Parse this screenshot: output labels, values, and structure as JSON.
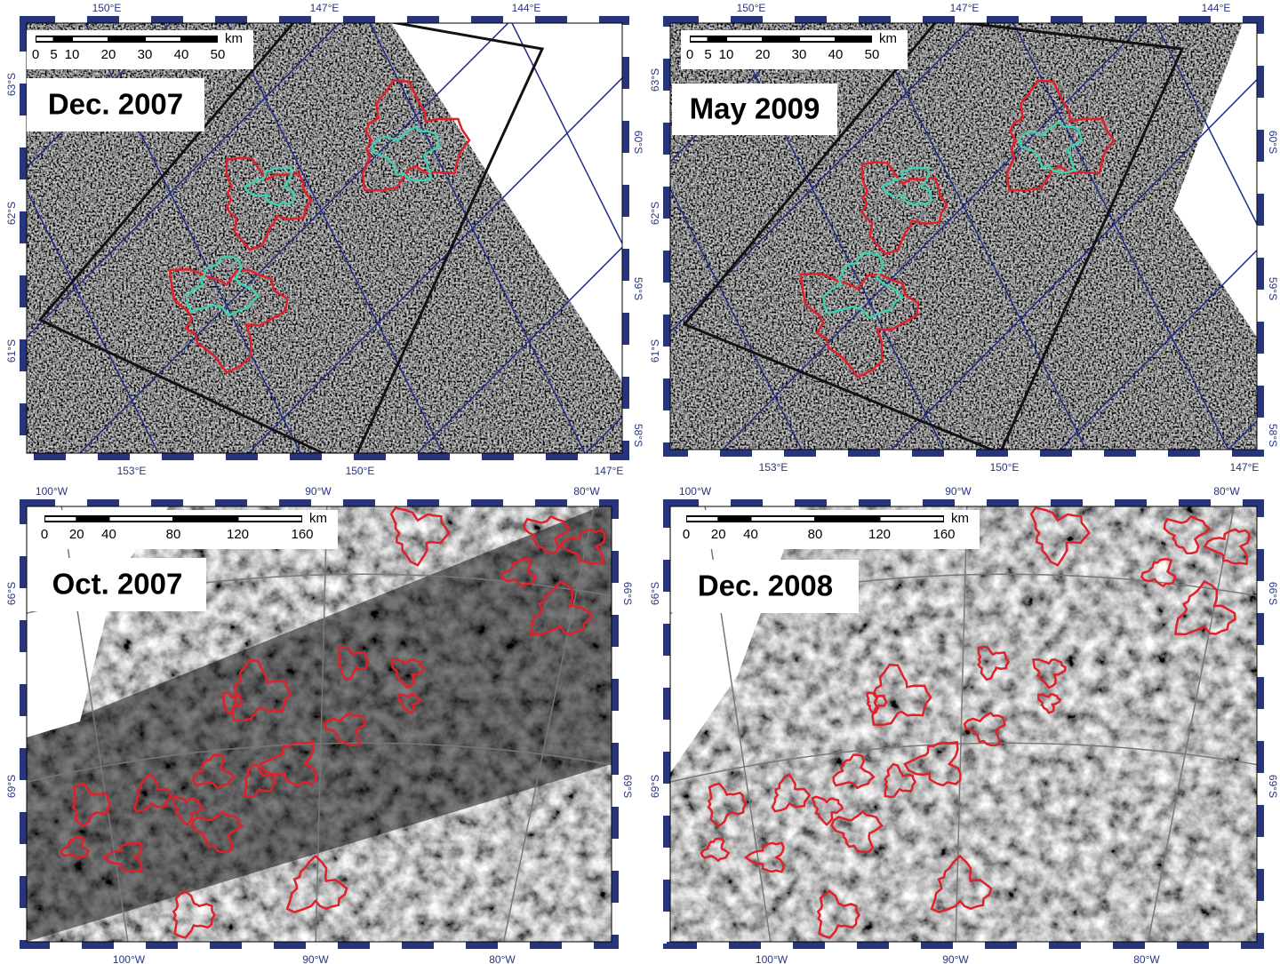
{
  "panels": [
    {
      "title": "Dec. 2007",
      "top_labels": [
        "150°E",
        "147°E",
        "144°E"
      ],
      "bottom_labels": [
        "153°E",
        "150°E",
        "147°E"
      ],
      "left_labels": [
        "63°S",
        "62°S",
        "61°S"
      ],
      "right_labels": [
        "60°S",
        "59°S",
        "58°S"
      ],
      "scale_labels": [
        "0",
        "5",
        "10",
        "20",
        "30",
        "40",
        "50"
      ],
      "scale_unit": "km"
    },
    {
      "title": "May 2009",
      "top_labels": [
        "150°E",
        "147°E",
        "144°E"
      ],
      "bottom_labels": [
        "153°E",
        "150°E",
        "147°E"
      ],
      "left_labels": [
        "63°S",
        "62°S",
        "61°S"
      ],
      "right_labels": [
        "60°S",
        "59°S",
        "58°S"
      ],
      "scale_labels": [
        "0",
        "5",
        "10",
        "20",
        "30",
        "40",
        "50"
      ],
      "scale_unit": "km"
    },
    {
      "title": "Oct. 2007",
      "top_labels": [
        "100°W",
        "90°W",
        "80°W"
      ],
      "bottom_labels": [
        "100°W",
        "90°W",
        "80°W"
      ],
      "left_labels": [
        "66°S",
        "69°S"
      ],
      "right_labels": [
        "66°S",
        "69°S"
      ],
      "scale_labels": [
        "0",
        "20",
        "40",
        "80",
        "120",
        "160"
      ],
      "scale_unit": "km"
    },
    {
      "title": "Dec. 2008",
      "top_labels": [
        "100°W",
        "90°W",
        "80°W"
      ],
      "bottom_labels": [
        "100°W",
        "90°W",
        "80°W"
      ],
      "left_labels": [
        "66°S",
        "69°S"
      ],
      "right_labels": [
        "66°S",
        "69°S"
      ],
      "scale_labels": [
        "0",
        "20",
        "40",
        "80",
        "120",
        "160"
      ],
      "scale_unit": "km"
    }
  ]
}
